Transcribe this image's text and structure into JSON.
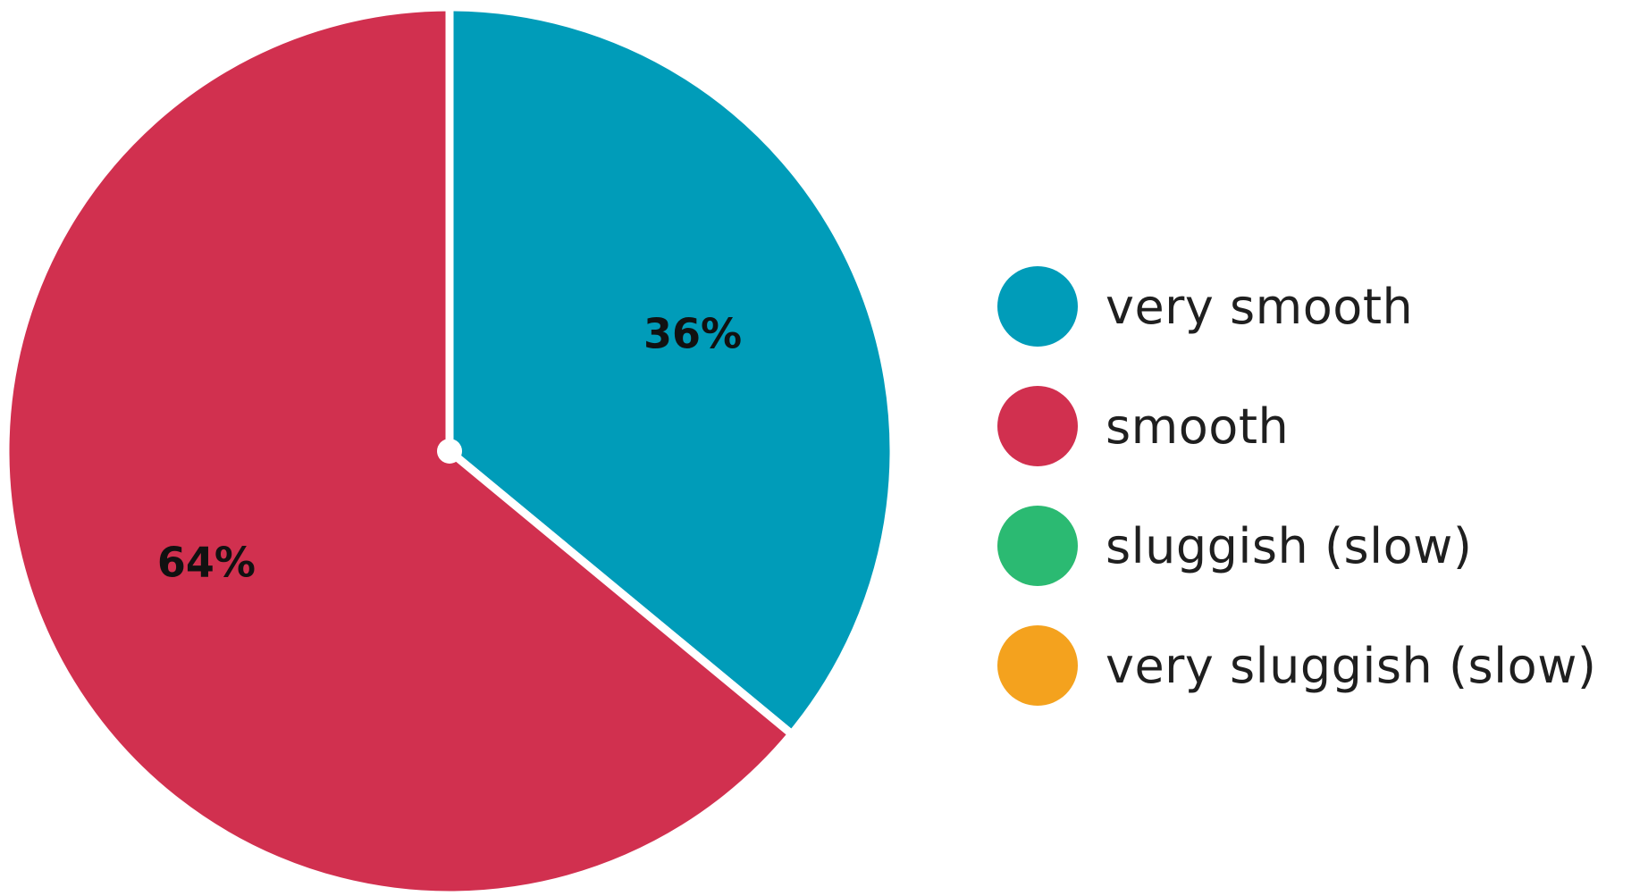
{
  "chart_data": {
    "type": "pie",
    "categories": [
      "very smooth",
      "smooth",
      "sluggish (slow)",
      "very sluggish (slow)"
    ],
    "values": [
      36,
      64,
      0,
      0
    ],
    "value_labels": [
      "36%",
      "64%",
      "",
      ""
    ],
    "colors": [
      "#009cb9",
      "#d1304f",
      "#2bba72",
      "#f4a21e"
    ],
    "start_angle": "12 o'clock",
    "direction": "clockwise",
    "legend_position": "right",
    "legend": [
      {
        "label": "very smooth",
        "color": "#009cb9"
      },
      {
        "label": "smooth",
        "color": "#d1304f"
      },
      {
        "label": "sluggish (slow)",
        "color": "#2bba72"
      },
      {
        "label": "very sluggish (slow)",
        "color": "#f4a21e"
      }
    ]
  }
}
